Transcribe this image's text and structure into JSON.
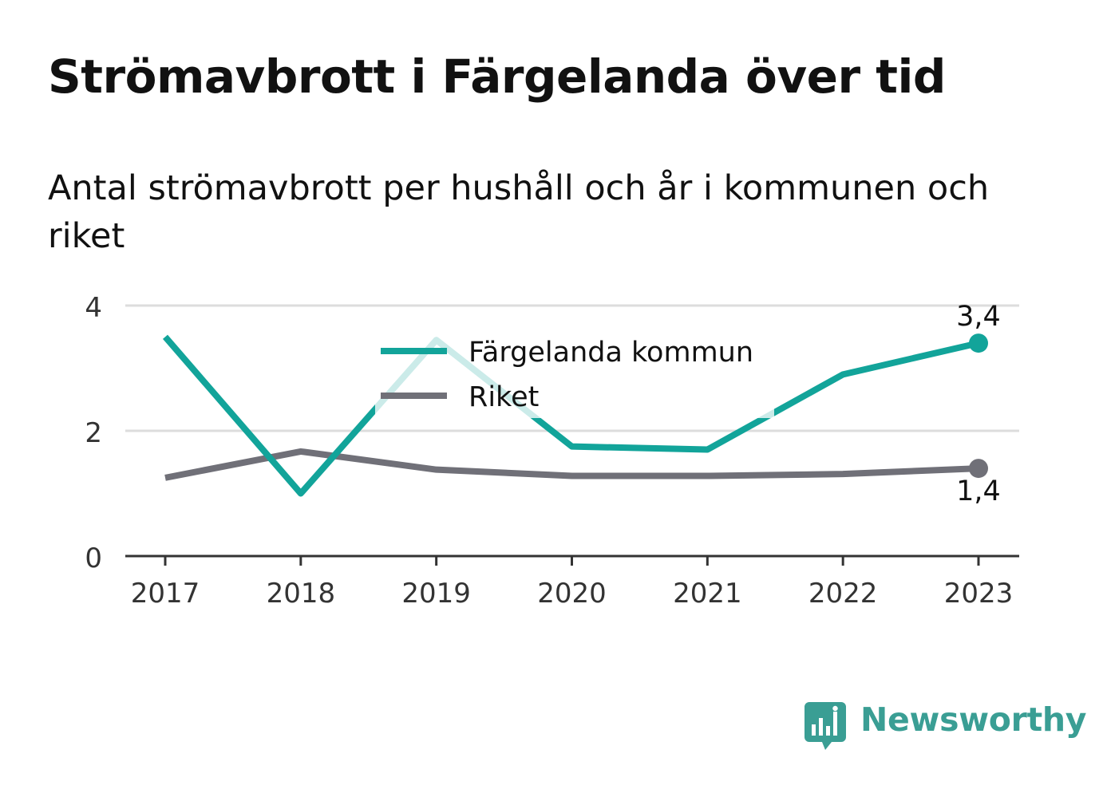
{
  "title": "Strömavbrott i Färgelanda över tid",
  "subtitle": "Antal strömavbrott per hushåll och år i kommunen och riket",
  "brand": {
    "name": "Newsworthy",
    "icon": "newsworthy-logo-icon",
    "color": "#3a9e94"
  },
  "chart_data": {
    "type": "line",
    "title": "Strömavbrott i Färgelanda över tid",
    "subtitle": "Antal strömavbrott per hushåll och år i kommunen och riket",
    "x": [
      "2017",
      "2018",
      "2019",
      "2020",
      "2021",
      "2022",
      "2023"
    ],
    "ylim": [
      0,
      4
    ],
    "yticks": [
      "0",
      "2",
      "4"
    ],
    "grid": true,
    "legend": "top-center",
    "series": [
      {
        "name": "Färgelanda kommun",
        "color": "#12a49a",
        "values": [
          3.5,
          1.0,
          3.45,
          1.75,
          1.7,
          2.9,
          3.4
        ],
        "end_label": "3,4"
      },
      {
        "name": "Riket",
        "color": "#707078",
        "values": [
          1.25,
          1.67,
          1.38,
          1.28,
          1.28,
          1.31,
          1.4
        ],
        "end_label": "1,4"
      }
    ]
  }
}
